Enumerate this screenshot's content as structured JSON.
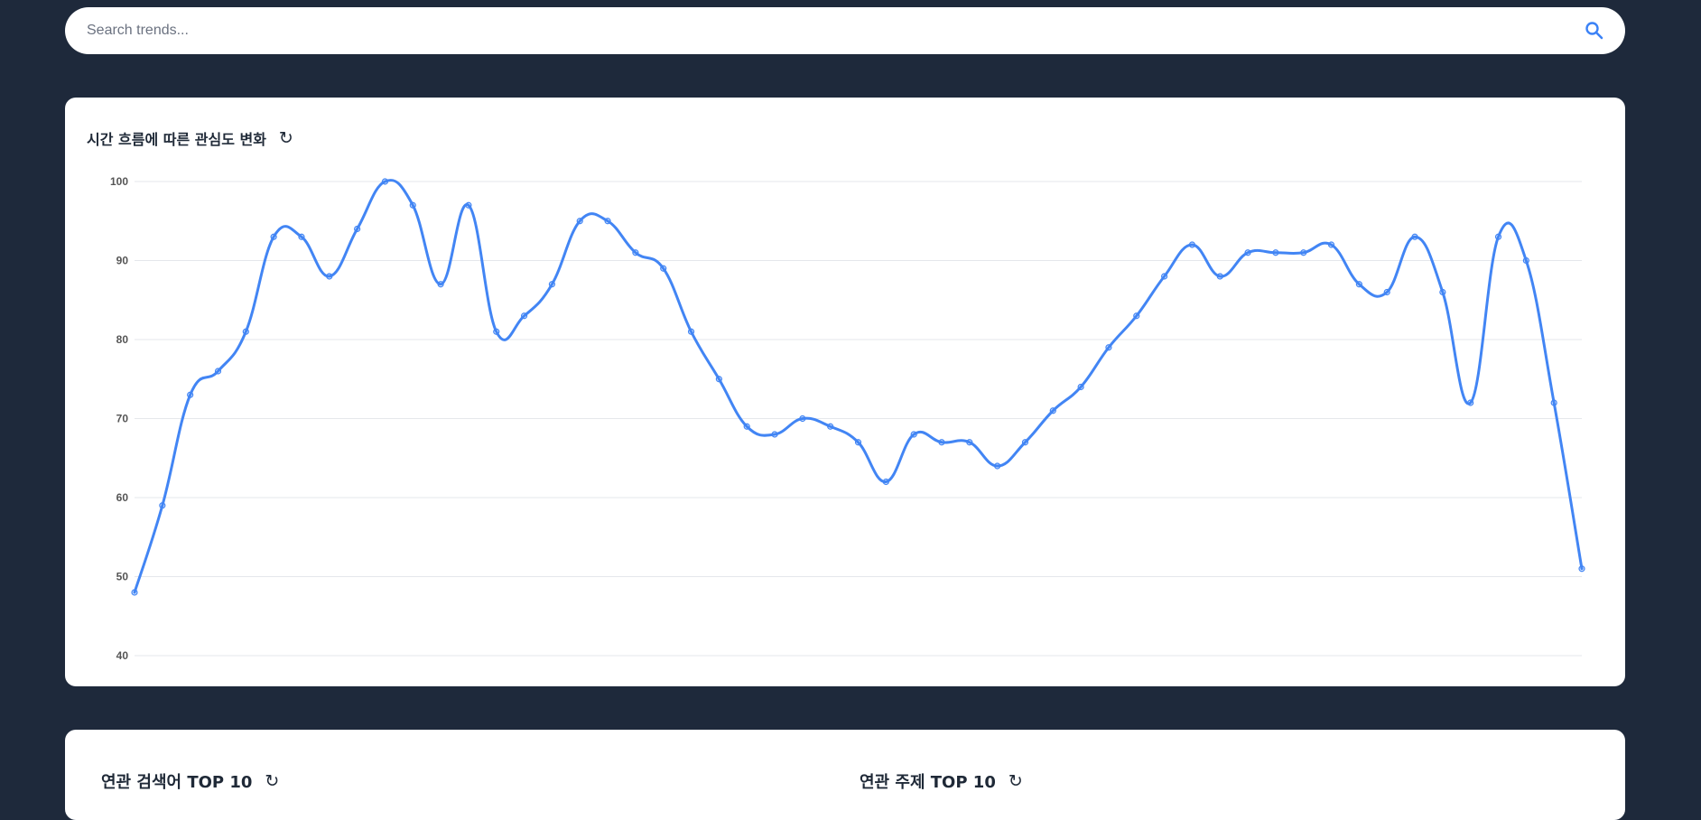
{
  "search": {
    "placeholder": "Search trends...",
    "icon": "search-icon",
    "icon_color": "#3b82f6"
  },
  "interest_card": {
    "title": "시간 흐름에 따른 관심도 변화",
    "refresh_symbol": "↻"
  },
  "chart_data": {
    "type": "line",
    "title": "",
    "xlabel": "",
    "ylabel": "",
    "ylim": [
      40,
      100
    ],
    "yticks": [
      40,
      50,
      60,
      70,
      80,
      90,
      100
    ],
    "grid": true,
    "legend": "none",
    "line_color": "#4285f4",
    "series": [
      {
        "values": [
          48,
          59,
          73,
          76,
          81,
          93,
          93,
          88,
          94,
          100,
          97,
          87,
          97,
          81,
          83,
          87,
          95,
          95,
          91,
          89,
          81,
          75,
          69,
          68,
          70,
          69,
          67,
          62,
          68,
          67,
          67,
          64,
          67,
          71,
          74,
          79,
          83,
          88,
          92,
          88,
          91,
          91,
          91,
          92,
          87,
          86,
          93,
          86,
          72,
          93,
          90,
          72,
          51
        ]
      }
    ]
  },
  "bottom": {
    "related_searches_title": "연관 검색어 TOP 10",
    "related_topics_title": "연관 주제 TOP 10",
    "refresh_symbol": "↻"
  },
  "colors": {
    "page_background": "#1e293b",
    "card_background": "#ffffff",
    "accent": "#4285f4",
    "gridline": "#e5e7eb"
  }
}
